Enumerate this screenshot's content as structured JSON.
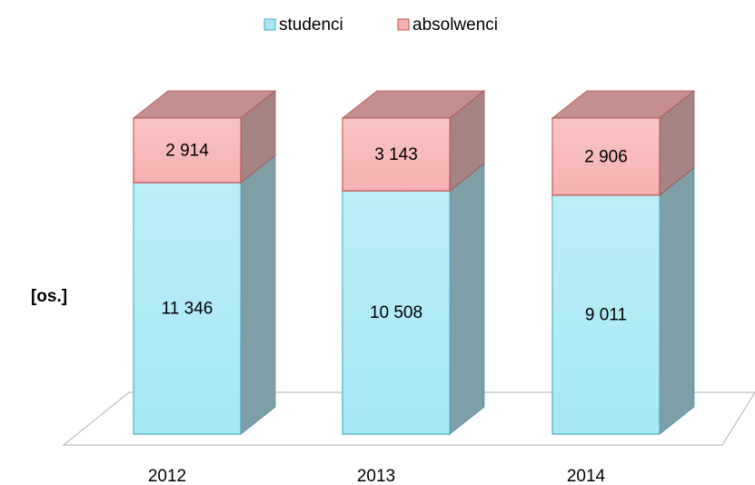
{
  "chart_data": {
    "type": "bar",
    "stack": "percent",
    "categories": [
      "2012",
      "2013",
      "2014"
    ],
    "y_label": "[os.]",
    "series": [
      {
        "name": "studenci",
        "color": "#a6e8f5",
        "border": "#4bacc6",
        "values": [
          11346,
          10508,
          9011
        ],
        "value_labels": [
          "11 346",
          "10 508",
          "9 011"
        ]
      },
      {
        "name": "absolwenci",
        "color": "#f6b1b1",
        "border": "#c0504d",
        "values": [
          2914,
          3143,
          2906
        ],
        "value_labels": [
          "2 914",
          "3 143",
          "2 906"
        ]
      }
    ],
    "legend": "top"
  }
}
